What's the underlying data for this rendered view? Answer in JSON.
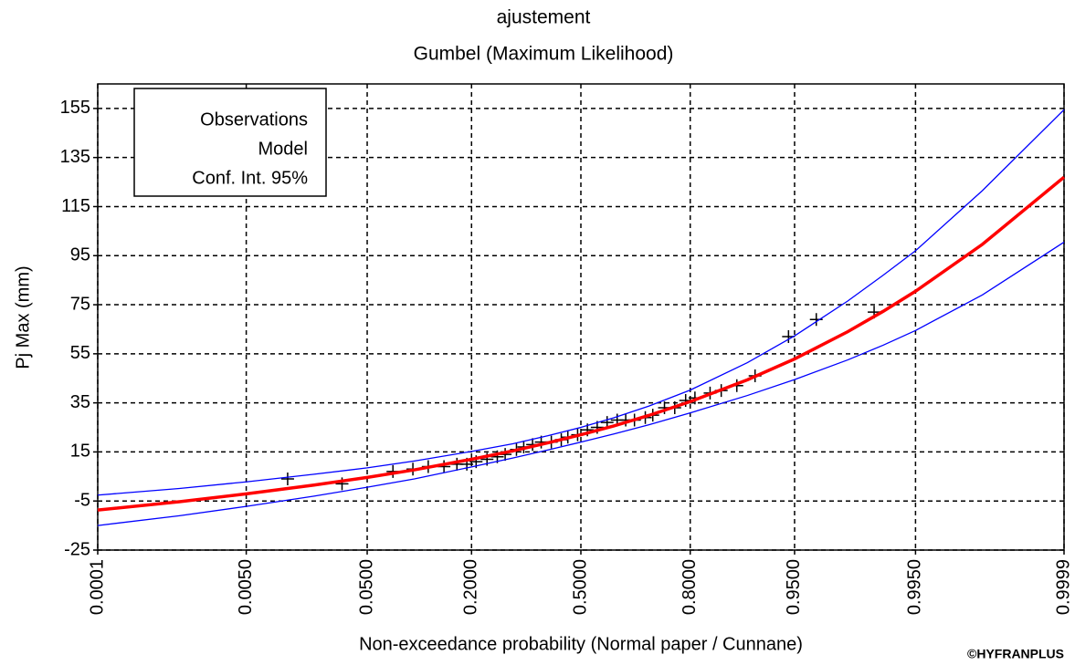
{
  "chart_data": {
    "type": "line",
    "title": "ajustement",
    "subtitle": "Gumbel (Maximum Likelihood)",
    "x_label": "Non-exceedance probability (Normal paper / Cunnane)",
    "y_label": "Pj Max (mm)",
    "credit": "©HYFRANPLUS",
    "xscale": "normal",
    "xlim": [
      0.0001,
      0.9999
    ],
    "xticks": [
      0.0001,
      {
        "value": 0.005,
        "label": "0.0050"
      },
      {
        "value": 0.05,
        "label": "0.0500"
      },
      {
        "value": 0.2,
        "label": "0.2000"
      },
      {
        "value": 0.5,
        "label": "0.5000"
      },
      {
        "value": 0.8,
        "label": "0.8000"
      },
      {
        "value": 0.95,
        "label": "0.9500"
      },
      {
        "value": 0.995,
        "label": "0.9950"
      },
      0.9999
    ],
    "ylim": [
      -25,
      165
    ],
    "yticks": [
      -25,
      -5,
      15,
      35,
      55,
      75,
      95,
      115,
      135,
      155
    ],
    "grid": true,
    "legend": "upper left",
    "series": [
      {
        "name": "Observations",
        "color": "#000000",
        "marker": "+",
        "x": [
          0.012,
          0.033,
          0.074,
          0.098,
          0.12,
          0.146,
          0.17,
          0.19,
          0.21,
          0.235,
          0.26,
          0.28,
          0.31,
          0.33,
          0.355,
          0.38,
          0.41,
          0.44,
          0.46,
          0.49,
          0.52,
          0.55,
          0.58,
          0.61,
          0.635,
          0.66,
          0.69,
          0.71,
          0.74,
          0.765,
          0.79,
          0.81,
          0.84,
          0.86,
          0.885,
          0.91,
          0.945,
          0.965,
          0.988
        ],
        "values": [
          4,
          2,
          7,
          8,
          9,
          9,
          10,
          10,
          11,
          12,
          13,
          14,
          16,
          17,
          18,
          19,
          19,
          20,
          21,
          22,
          24,
          25,
          27,
          28,
          28,
          28,
          29,
          30,
          33,
          33,
          36,
          37,
          39,
          40,
          42,
          46,
          62,
          69,
          72
        ]
      },
      {
        "name": "Model",
        "color": "#ff0000",
        "x": [
          0.0001,
          0.001,
          0.005,
          0.02,
          0.05,
          0.1,
          0.2,
          0.3,
          0.4,
          0.5,
          0.6,
          0.7,
          0.8,
          0.9,
          0.95,
          0.98,
          0.99,
          0.995,
          0.999,
          0.9999
        ],
        "values": [
          -8.7,
          -5.3,
          -2.1,
          1.5,
          4.6,
          7.7,
          12.0,
          15.4,
          18.7,
          22.0,
          25.6,
          29.9,
          35.5,
          44.4,
          52.9,
          64.0,
          72.3,
          80.5,
          99.6,
          127.0
        ]
      },
      {
        "name": "Conf. Int. 95%",
        "color": "#0000ff",
        "x": [
          0.0001,
          0.001,
          0.005,
          0.02,
          0.05,
          0.1,
          0.2,
          0.3,
          0.4,
          0.5,
          0.6,
          0.7,
          0.8,
          0.9,
          0.95,
          0.98,
          0.99,
          0.995,
          0.999,
          0.9999
        ],
        "values": [
          -2.6,
          0.1,
          2.8,
          5.9,
          8.5,
          11.3,
          15.2,
          18.3,
          21.6,
          25.0,
          28.9,
          33.7,
          40.2,
          51.4,
          62.3,
          76.5,
          87.0,
          97.0,
          121.5,
          154.5
        ],
        "lower": [
          -15.0,
          -11.0,
          -7.2,
          -3.0,
          0.6,
          4.0,
          8.9,
          12.5,
          15.8,
          19.0,
          22.3,
          26.1,
          30.9,
          38.0,
          44.5,
          52.5,
          58.5,
          64.5,
          79.0,
          100.5
        ]
      }
    ]
  }
}
